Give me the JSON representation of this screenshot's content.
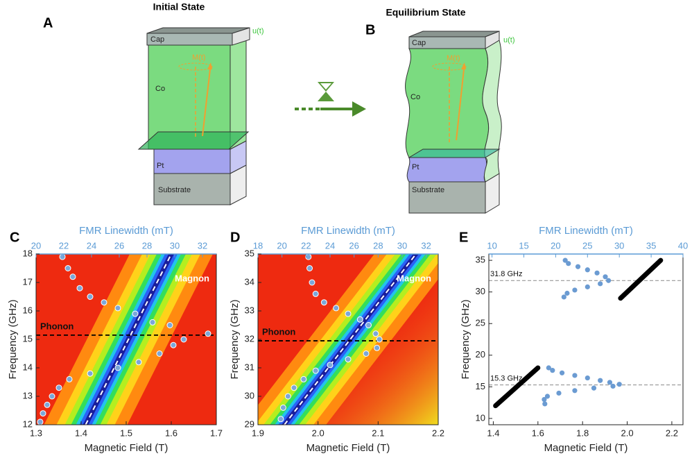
{
  "figure": {
    "panel_labels": [
      "A",
      "B",
      "C",
      "D",
      "E"
    ],
    "titles": [
      "Initial State",
      "Equilibrium State"
    ],
    "stack_a": {
      "cap": "Cap",
      "co": "Co",
      "pt": "Pt",
      "substrate": "Substrate",
      "u": "u(t)",
      "m": "M(t)"
    },
    "stack_b": {
      "cap": "Cap",
      "co": "Co",
      "pt": "Pt",
      "substrate": "Substrate",
      "u": "u(t)",
      "m": "M(t)"
    }
  },
  "chart_data": [
    {
      "type": "scatter",
      "heatmap": true,
      "xlabel": "Magnetic Field (T)",
      "x2label": "FMR Linewidth (mT)",
      "ylabel": "Frequency (GHz)",
      "xlim": [
        1.3,
        1.7
      ],
      "xticks": [
        1.3,
        1.4,
        1.5,
        1.6,
        1.7
      ],
      "x2lim": [
        20,
        33
      ],
      "x2ticks": [
        20,
        22,
        24,
        26,
        28,
        30,
        32
      ],
      "ylim": [
        12,
        18
      ],
      "yticks": [
        12,
        13,
        14,
        15,
        16,
        17,
        18
      ],
      "fit_line": {
        "x": [
          1.41,
          1.6
        ],
        "values": [
          12,
          18
        ]
      },
      "reference_lines": [
        {
          "value": 15.15,
          "label": "Phonon"
        }
      ],
      "annotation": "Magnon",
      "series": [
        {
          "color": "#7ba7d9",
          "axis": "x2",
          "x": [
            21.9,
            22.3,
            22.65,
            23.15,
            23.9,
            24.9,
            25.9,
            27.15,
            28.4,
            29.65,
            30.65,
            32.4,
            29.9,
            28.9,
            27.4,
            25.9,
            23.9,
            22.4,
            21.65,
            21.15,
            20.8,
            20.5,
            20.3
          ],
          "values": [
            17.9,
            17.5,
            17.2,
            16.8,
            16.5,
            16.3,
            16.1,
            15.9,
            15.6,
            15.5,
            15.0,
            15.2,
            14.8,
            14.5,
            14.2,
            14.0,
            13.8,
            13.6,
            13.3,
            13.0,
            12.7,
            12.4,
            12.1
          ]
        }
      ]
    },
    {
      "type": "scatter",
      "heatmap": true,
      "xlabel": "Magnetic Field (T)",
      "x2label": "FMR Linewidth (mT)",
      "ylabel": "Frequency (GHz)",
      "xlim": [
        1.9,
        2.2
      ],
      "xticks": [
        1.9,
        {
          "value": 2,
          "label": "2.0"
        },
        2.1,
        2.2
      ],
      "x2lim": [
        18,
        33
      ],
      "x2ticks": [
        18,
        20,
        22,
        24,
        26,
        28,
        30,
        32
      ],
      "ylim": [
        29,
        35
      ],
      "yticks": [
        29,
        30,
        31,
        32,
        33,
        34,
        35
      ],
      "fit_line": {
        "x": [
          1.944,
          2.163
        ],
        "values": [
          29,
          35
        ]
      },
      "reference_lines": [
        {
          "value": 31.95,
          "label": "Phonon"
        }
      ],
      "annotation": "Magnon",
      "series": [
        {
          "color": "#7ba7d9",
          "axis": "x2",
          "x": [
            22.2,
            22.3,
            22.5,
            22.8,
            23.5,
            24.5,
            25.5,
            26.5,
            27.2,
            27.8,
            28.1,
            27.9,
            27.0,
            25.5,
            24.0,
            22.8,
            21.8,
            21.0,
            20.5,
            20.1,
            19.9
          ],
          "values": [
            34.9,
            34.5,
            34.0,
            33.6,
            33.3,
            33.1,
            32.9,
            32.7,
            32.5,
            32.2,
            32.0,
            31.7,
            31.5,
            31.3,
            31.1,
            30.9,
            30.6,
            30.3,
            30.0,
            29.6,
            29.2
          ]
        }
      ]
    },
    {
      "type": "scatter",
      "heatmap": false,
      "xlabel": "Magnetic Field (T)",
      "x2label": "FMR Linewidth (mT)",
      "ylabel": "Frequency (GHz)",
      "xlim": [
        1.38,
        2.25
      ],
      "xticks": [
        1.4,
        1.6,
        1.8,
        {
          "value": 2,
          "label": "2.0"
        },
        2.2
      ],
      "x2lim": [
        9.5,
        40
      ],
      "x2ticks": [
        10,
        15,
        20,
        25,
        30,
        35,
        40
      ],
      "ylim": [
        9,
        36
      ],
      "yticks": [
        10,
        15,
        20,
        25,
        30,
        35
      ],
      "reference_lines": [
        {
          "value": 31.8,
          "label": "31.8 GHz"
        },
        {
          "value": 15.3,
          "label": "15.3 GHz"
        }
      ],
      "lines": [
        {
          "color": "#000000",
          "x": [
            1.41,
            1.6
          ],
          "values": [
            12,
            18
          ]
        },
        {
          "color": "#000000",
          "x": [
            1.97,
            2.15
          ],
          "values": [
            29,
            35
          ]
        }
      ],
      "series": [
        {
          "color": "#6b9bd2",
          "axis": "x2",
          "x": [
            18.9,
            19.5,
            21,
            23,
            25,
            27,
            28.5,
            30,
            29,
            26,
            23,
            20.5,
            18.7,
            18.2,
            18.3
          ],
          "values": [
            18.0,
            17.6,
            17.2,
            16.8,
            16.4,
            16.0,
            15.7,
            15.4,
            15.1,
            14.8,
            14.4,
            14.0,
            13.5,
            13.0,
            12.3
          ]
        },
        {
          "color": "#6b9bd2",
          "axis": "x2",
          "x": [
            21.5,
            22,
            23.5,
            25,
            26.5,
            27.8,
            28.3,
            27,
            25,
            23,
            21.8,
            21.3
          ],
          "values": [
            35.0,
            34.5,
            34.0,
            33.5,
            33.0,
            32.4,
            31.8,
            31.3,
            30.8,
            30.3,
            29.8,
            29.2
          ]
        }
      ]
    }
  ]
}
